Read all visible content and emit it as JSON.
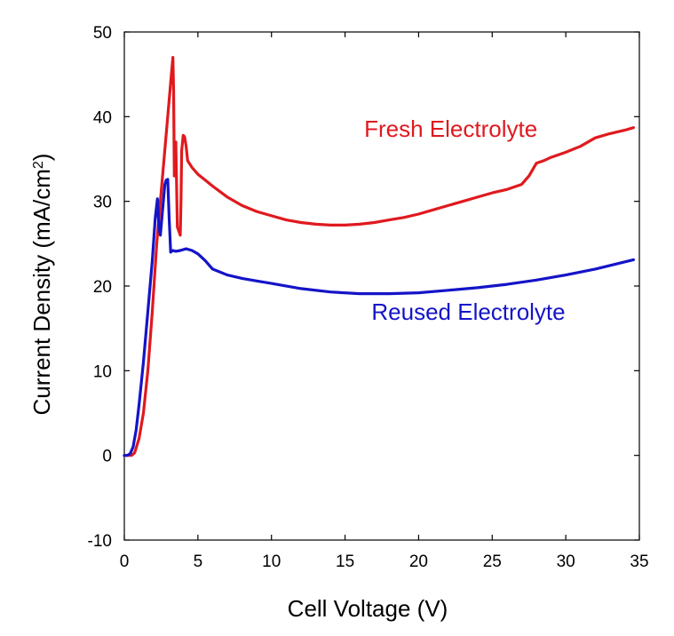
{
  "chart_data": {
    "type": "line",
    "title": "",
    "xlabel": "Cell Voltage (V)",
    "ylabel": "Current Density (mA/cm",
    "ylabel_sup": "2",
    "ylabel_end": ")",
    "xlim": [
      0,
      35
    ],
    "ylim": [
      -10,
      50
    ],
    "xticks": [
      0,
      5,
      10,
      15,
      20,
      25,
      30,
      35
    ],
    "yticks": [
      -10,
      0,
      10,
      20,
      30,
      40,
      50
    ],
    "xtick_labels": [
      "0",
      "5",
      "10",
      "15",
      "20",
      "25",
      "30",
      "35"
    ],
    "ytick_labels": [
      "-10",
      "0",
      "10",
      "20",
      "30",
      "40",
      "50"
    ],
    "grid": false,
    "legend": "none",
    "series": [
      {
        "name": "Fresh Electrolyte",
        "color": "#e0191e",
        "label_text": "Fresh Electrolyte",
        "label_at": [
          16.3,
          37.6
        ],
        "x": [
          0,
          0.3,
          0.5,
          0.7,
          1.0,
          1.3,
          1.6,
          1.9,
          2.2,
          2.5,
          2.8,
          3.0,
          3.2,
          3.3,
          3.35,
          3.4,
          3.5,
          3.6,
          3.7,
          3.8,
          3.85,
          3.9,
          4.0,
          4.1,
          4.2,
          4.3,
          4.6,
          5.0,
          5.5,
          6.0,
          7.0,
          8.0,
          9.0,
          10.0,
          11.0,
          12.0,
          13.0,
          14.0,
          15.0,
          16.0,
          17.0,
          18.0,
          19.0,
          20.0,
          21.0,
          22.0,
          23.0,
          24.0,
          25.0,
          26.0,
          27.0,
          27.5,
          28.0,
          28.5,
          29.0,
          29.5,
          30.0,
          31.0,
          32.0,
          33.0,
          34.0,
          34.6
        ],
        "y": [
          0,
          0,
          0,
          0.3,
          2,
          5,
          10,
          17,
          25,
          31,
          37,
          41,
          45,
          47,
          43,
          33,
          37,
          27,
          26.5,
          26,
          30,
          36,
          37.8,
          37.6,
          36.5,
          34.8,
          34,
          33.2,
          32.5,
          31.8,
          30.5,
          29.5,
          28.8,
          28.3,
          27.8,
          27.5,
          27.3,
          27.2,
          27.2,
          27.3,
          27.5,
          27.8,
          28.1,
          28.5,
          29,
          29.5,
          30,
          30.5,
          31,
          31.4,
          32,
          33,
          34.5,
          34.8,
          35.2,
          35.5,
          35.8,
          36.5,
          37.5,
          38,
          38.4,
          38.7
        ]
      },
      {
        "name": "Reused Electrolyte",
        "color": "#1414c8",
        "label_text": "Reused Electrolyte",
        "label_at": [
          16.8,
          16.0
        ],
        "x": [
          0,
          0.2,
          0.4,
          0.6,
          0.8,
          1.0,
          1.3,
          1.6,
          1.9,
          2.1,
          2.25,
          2.35,
          2.45,
          2.6,
          2.75,
          2.85,
          2.95,
          3.05,
          3.15,
          3.3,
          3.5,
          3.8,
          4.2,
          4.6,
          5.0,
          5.5,
          6.0,
          7.0,
          8.0,
          9.0,
          10.0,
          12.0,
          14.0,
          16.0,
          18.0,
          20.0,
          22.0,
          24.0,
          26.0,
          28.0,
          30.0,
          32.0,
          34.6
        ],
        "y": [
          0,
          0,
          0.2,
          1,
          3,
          6,
          11,
          17,
          23,
          28,
          30.3,
          27,
          26,
          29,
          32,
          32.5,
          32.6,
          28,
          24,
          24.2,
          24.1,
          24.2,
          24.4,
          24.2,
          23.8,
          23,
          22,
          21.3,
          20.9,
          20.6,
          20.3,
          19.7,
          19.3,
          19.1,
          19.1,
          19.2,
          19.5,
          19.8,
          20.2,
          20.7,
          21.3,
          22,
          23.1
        ]
      }
    ]
  }
}
